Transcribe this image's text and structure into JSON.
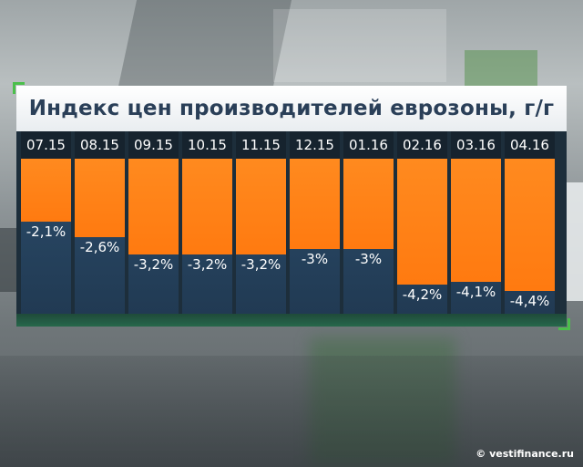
{
  "chart_data": {
    "type": "bar",
    "title": "Индекс цен производителей еврозоны, г/г",
    "categories": [
      "07.15",
      "08.15",
      "09.15",
      "10.15",
      "11.15",
      "12.15",
      "01.16",
      "02.16",
      "03.16",
      "04.16"
    ],
    "values": [
      -2.1,
      -2.6,
      -3.2,
      -3.2,
      -3.2,
      -3.0,
      -3.0,
      -4.2,
      -4.1,
      -4.4
    ],
    "value_labels": [
      "-2,1%",
      "-2,6%",
      "-3,2%",
      "-3,2%",
      "-3,2%",
      "-3%",
      "-3%",
      "-4,2%",
      "-4,1%",
      "-4,4%"
    ],
    "unit": "%",
    "ylim": [
      -4.4,
      0
    ],
    "bar_color": "#ff7a10",
    "background_color": "#223b55"
  },
  "footer": {
    "credit": "© vestifinance.ru"
  }
}
